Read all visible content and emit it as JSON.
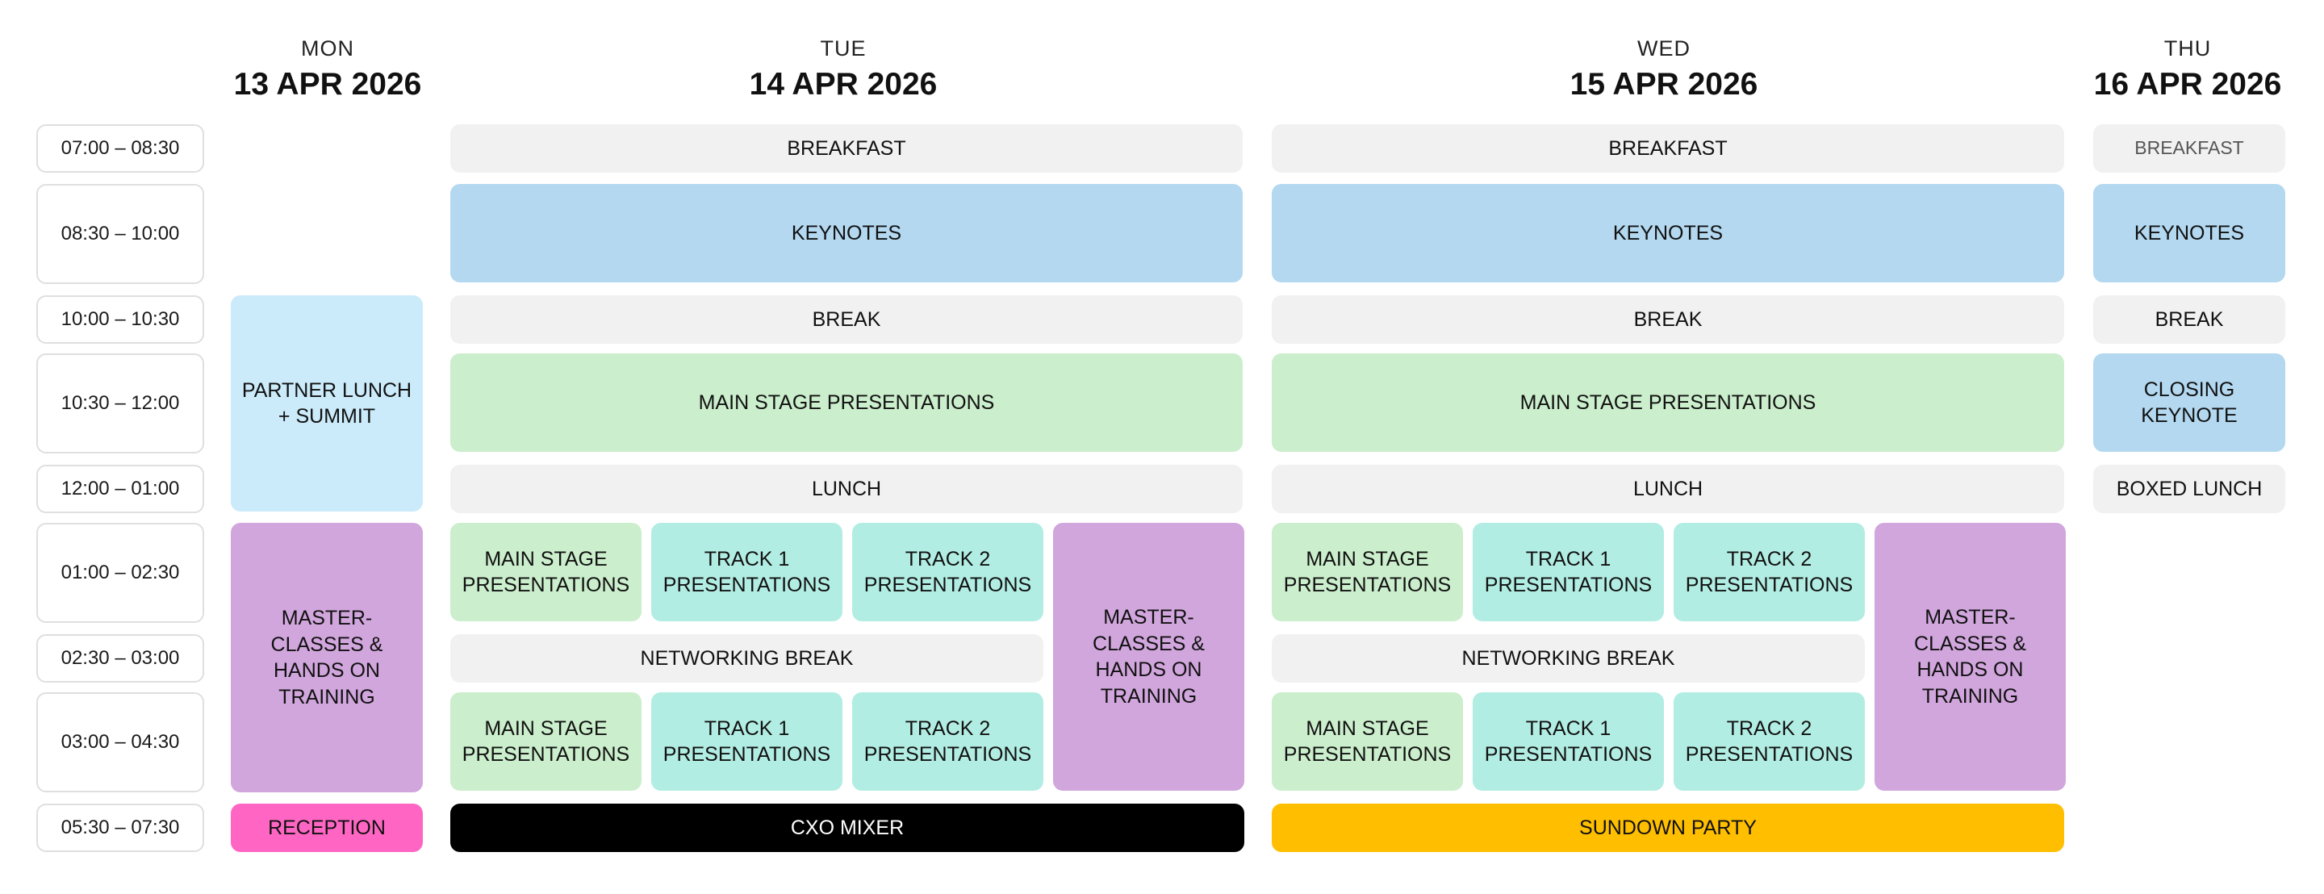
{
  "colors": {
    "grey": "#f1f1f1",
    "blue": "#b3d8f0",
    "light_blue": "#cbebfa",
    "green": "#cbeecc",
    "teal": "#b2ede3",
    "purple": "#d1a6dd",
    "pink": "#ff66c4",
    "black": "#000000",
    "yellow": "#ffbf00"
  },
  "times": [
    "07:00 – 08:30",
    "08:30 – 10:00",
    "10:00 – 10:30",
    "10:30 – 12:00",
    "12:00 – 01:00",
    "01:00 – 02:30",
    "02:30 – 03:00",
    "03:00 – 04:30",
    "05:30 – 07:30"
  ],
  "days": {
    "mon": {
      "dow": "MON",
      "date": "13 APR 2026",
      "partner": "PARTNER LUNCH\n+ SUMMIT",
      "masterclasses": "MASTER-\nCLASSES &\nHANDS ON\nTRAINING",
      "reception": "RECEPTION"
    },
    "tue": {
      "dow": "TUE",
      "date": "14 APR 2026",
      "breakfast": "BREAKFAST",
      "keynotes": "KEYNOTES",
      "break": "BREAK",
      "main_stage": "MAIN STAGE PRESENTATIONS",
      "lunch": "LUNCH",
      "pm1_main": "MAIN STAGE\nPRESENTATIONS",
      "pm1_track1": "TRACK 1\nPRESENTATIONS",
      "pm1_track2": "TRACK 2\nPRESENTATIONS",
      "networking": "NETWORKING BREAK",
      "pm2_main": "MAIN STAGE\nPRESENTATIONS",
      "pm2_track1": "TRACK 1\nPRESENTATIONS",
      "pm2_track2": "TRACK 2\nPRESENTATIONS",
      "masterclasses": "MASTER-\nCLASSES &\nHANDS ON\nTRAINING",
      "evening": "CXO MIXER"
    },
    "wed": {
      "dow": "WED",
      "date": "15 APR 2026",
      "breakfast": "BREAKFAST",
      "keynotes": "KEYNOTES",
      "break": "BREAK",
      "main_stage": "MAIN STAGE PRESENTATIONS",
      "lunch": "LUNCH",
      "pm1_main": "MAIN STAGE\nPRESENTATIONS",
      "pm1_track1": "TRACK 1\nPRESENTATIONS",
      "pm1_track2": "TRACK 2\nPRESENTATIONS",
      "networking": "NETWORKING BREAK",
      "pm2_main": "MAIN STAGE\nPRESENTATIONS",
      "pm2_track1": "TRACK 1\nPRESENTATIONS",
      "pm2_track2": "TRACK 2\nPRESENTATIONS",
      "masterclasses": "MASTER-\nCLASSES &\nHANDS ON\nTRAINING",
      "evening": "SUNDOWN PARTY"
    },
    "thu": {
      "dow": "THU",
      "date": "16 APR 2026",
      "breakfast": "BREAKFAST",
      "keynotes": "KEYNOTES",
      "break": "BREAK",
      "closing": "CLOSING\nKEYNOTE",
      "lunch": "BOXED LUNCH"
    }
  }
}
